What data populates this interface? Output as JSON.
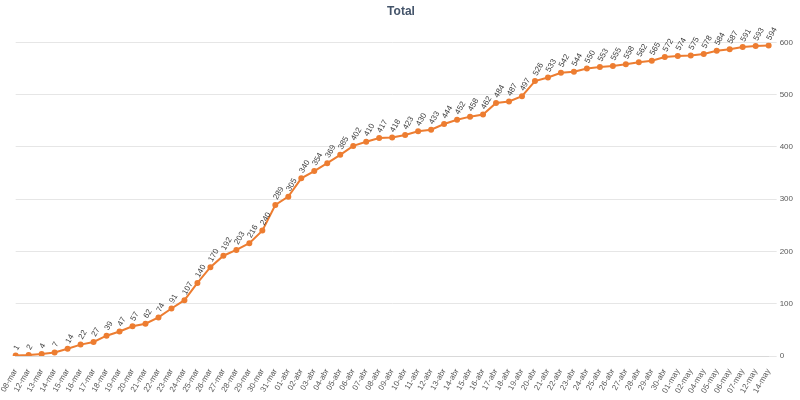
{
  "chart_data": {
    "type": "line",
    "title": "Total",
    "categories": [
      "08-mar",
      "12-mar",
      "13-mar",
      "14-mar",
      "15-mar",
      "16-mar",
      "17-mar",
      "18-mar",
      "19-mar",
      "20-mar",
      "21-mar",
      "22-mar",
      "23-mar",
      "24-mar",
      "25-mar",
      "26-mar",
      "27-mar",
      "28-mar",
      "29-mar",
      "30-mar",
      "31-mar",
      "01-abr",
      "02-abr",
      "03-abr",
      "04-abr",
      "05-abr",
      "06-abr",
      "07-abr",
      "08-abr",
      "09-abr",
      "10-abr",
      "11-abr",
      "12-abr",
      "13-abr",
      "14-abr",
      "15-abr",
      "16-abr",
      "17-abr",
      "18-abr",
      "19-abr",
      "20-abr",
      "21-abr",
      "22-abr",
      "23-abr",
      "24-abr",
      "25-abr",
      "26-abr",
      "27-abr",
      "28-abr",
      "29-abr",
      "30-abr",
      "01-may",
      "02-may",
      "04-may",
      "05-may",
      "06-may",
      "07-may",
      "12-may",
      "14-may"
    ],
    "values": [
      1,
      2,
      4,
      7,
      14,
      22,
      27,
      39,
      47,
      57,
      62,
      74,
      91,
      107,
      140,
      170,
      192,
      203,
      216,
      240,
      289,
      305,
      340,
      354,
      369,
      385,
      402,
      410,
      417,
      418,
      423,
      430,
      433,
      444,
      452,
      458,
      462,
      484,
      487,
      497,
      526,
      533,
      542,
      544,
      550,
      553,
      555,
      558,
      562,
      565,
      572,
      574,
      575,
      578,
      584,
      587,
      591,
      593,
      594
    ],
    "color": "#ed7d31",
    "marker": "circle",
    "data_labels": true,
    "grid": true,
    "ylim": [
      0,
      600
    ],
    "yticks": [
      0,
      100,
      200,
      300,
      400,
      500,
      600
    ]
  }
}
